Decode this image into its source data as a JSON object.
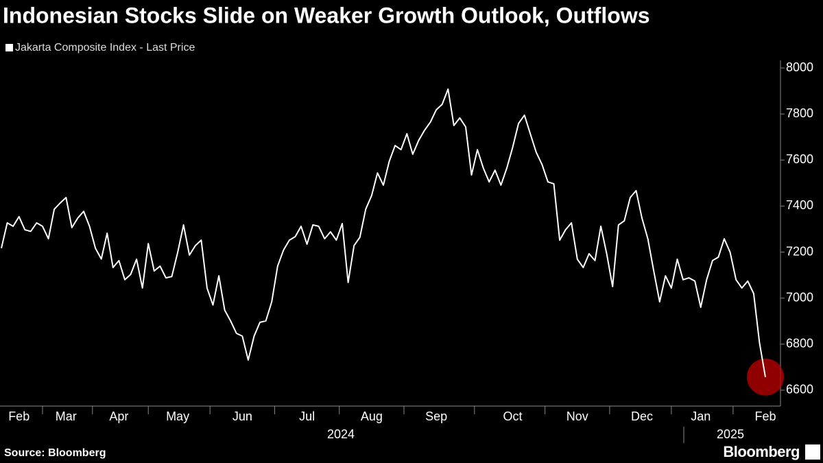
{
  "chart_data": {
    "type": "line",
    "title": "Indonesian Stocks Slide on Weaker Growth Outlook, Outflows",
    "source": "Source: Bloomberg",
    "branding": "Bloomberg",
    "years": [
      "2024",
      "2025"
    ],
    "categories": [
      null,
      null,
      null,
      "Feb",
      null,
      null,
      null,
      null,
      null,
      null,
      null,
      "Mar",
      null,
      null,
      null,
      null,
      null,
      null,
      null,
      null,
      "Apr",
      null,
      null,
      null,
      null,
      null,
      null,
      null,
      null,
      null,
      "May",
      null,
      null,
      null,
      null,
      null,
      null,
      null,
      null,
      null,
      null,
      "Jun",
      null,
      null,
      null,
      null,
      null,
      null,
      null,
      null,
      null,
      null,
      "Jul",
      null,
      null,
      null,
      null,
      null,
      null,
      null,
      null,
      null,
      null,
      "Aug",
      null,
      null,
      null,
      null,
      null,
      null,
      null,
      null,
      null,
      null,
      "Sep",
      null,
      null,
      null,
      null,
      null,
      null,
      null,
      null,
      null,
      null,
      null,
      null,
      "Oct",
      null,
      null,
      null,
      null,
      null,
      null,
      null,
      null,
      null,
      null,
      "Nov",
      null,
      null,
      null,
      null,
      null,
      null,
      null,
      null,
      null,
      null,
      "Dec",
      null,
      null,
      null,
      null,
      null,
      null,
      null,
      null,
      null,
      "Jan",
      null,
      null,
      null,
      null,
      null,
      null,
      null,
      null,
      null,
      null,
      "Feb"
    ],
    "series": [
      {
        "name": "Jakarta Composite Index - Last Price",
        "color": "#ffffff",
        "values": [
          7217,
          7327,
          7312,
          7354,
          7297,
          7290,
          7327,
          7312,
          7258,
          7386,
          7413,
          7437,
          7306,
          7348,
          7377,
          7312,
          7217,
          7170,
          7282,
          7133,
          7163,
          7080,
          7103,
          7169,
          7044,
          7237,
          7118,
          7139,
          7088,
          7094,
          7199,
          7318,
          7187,
          7228,
          7252,
          7044,
          6970,
          7097,
          6948,
          6901,
          6847,
          6835,
          6731,
          6835,
          6895,
          6901,
          6984,
          7139,
          7208,
          7252,
          7267,
          7312,
          7234,
          7318,
          7312,
          7258,
          7288,
          7252,
          7324,
          7068,
          7228,
          7264,
          7387,
          7446,
          7544,
          7491,
          7595,
          7663,
          7645,
          7714,
          7625,
          7685,
          7729,
          7765,
          7818,
          7842,
          7908,
          7750,
          7783,
          7744,
          7535,
          7645,
          7565,
          7505,
          7556,
          7491,
          7565,
          7655,
          7759,
          7795,
          7714,
          7634,
          7580,
          7505,
          7497,
          7252,
          7297,
          7327,
          7169,
          7133,
          7193,
          7163,
          7312,
          7193,
          7050,
          7318,
          7336,
          7437,
          7467,
          7348,
          7258,
          7118,
          6984,
          7097,
          7044,
          7169,
          7080,
          7088,
          7074,
          6960,
          7080,
          7163,
          7178,
          7258,
          7199,
          7080,
          7044,
          7074,
          7020,
          6806,
          6657
        ]
      }
    ],
    "ylim": [
      6531,
      8033
    ],
    "yticks": [
      6600,
      6800,
      7000,
      7200,
      7400,
      7600,
      7800,
      8000
    ],
    "highlight_color": "#c00000"
  }
}
